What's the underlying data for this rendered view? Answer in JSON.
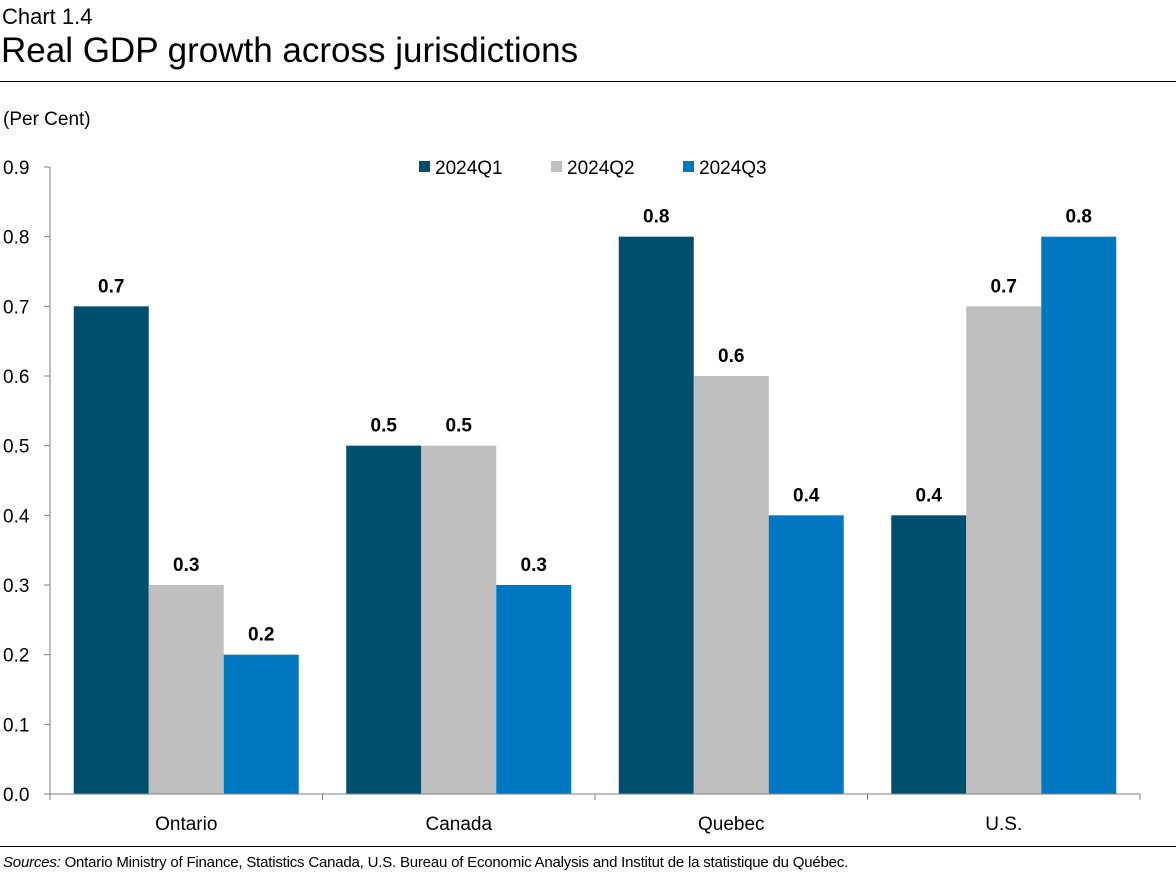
{
  "header": {
    "kicker": "Chart 1.4",
    "title": "Real GDP growth across jurisdictions"
  },
  "footer": {
    "sources_lead": "Sources:",
    "sources_text": " Ontario Ministry of Finance, Statistics Canada, U.S. Bureau of Economic Analysis and Institut de la statistique du Québec."
  },
  "colors": {
    "q1": "#004F6E",
    "q2": "#BFBFBF",
    "q3": "#0078C1",
    "axis": "#7F7F7F"
  },
  "chart_data": {
    "type": "bar",
    "title": "Real GDP growth across jurisdictions",
    "ylabel": "(Per Cent)",
    "xlabel": "",
    "ylim": [
      0,
      0.9
    ],
    "yticks": [
      "0.0",
      "0.1",
      "0.2",
      "0.3",
      "0.4",
      "0.5",
      "0.6",
      "0.7",
      "0.8",
      "0.9"
    ],
    "grid": false,
    "legend_position": "top-center",
    "categories": [
      "Ontario",
      "Canada",
      "Quebec",
      "U.S."
    ],
    "series": [
      {
        "name": "2024Q1",
        "values": [
          0.7,
          0.5,
          0.8,
          0.4
        ]
      },
      {
        "name": "2024Q2",
        "values": [
          0.3,
          0.5,
          0.6,
          0.7
        ]
      },
      {
        "name": "2024Q3",
        "values": [
          0.2,
          0.3,
          0.4,
          0.8
        ]
      }
    ],
    "data_labels": [
      [
        "0.7",
        "0.5",
        "0.8",
        "0.4"
      ],
      [
        "0.3",
        "0.5",
        "0.6",
        "0.7"
      ],
      [
        "0.2",
        "0.3",
        "0.4",
        "0.8"
      ]
    ]
  }
}
